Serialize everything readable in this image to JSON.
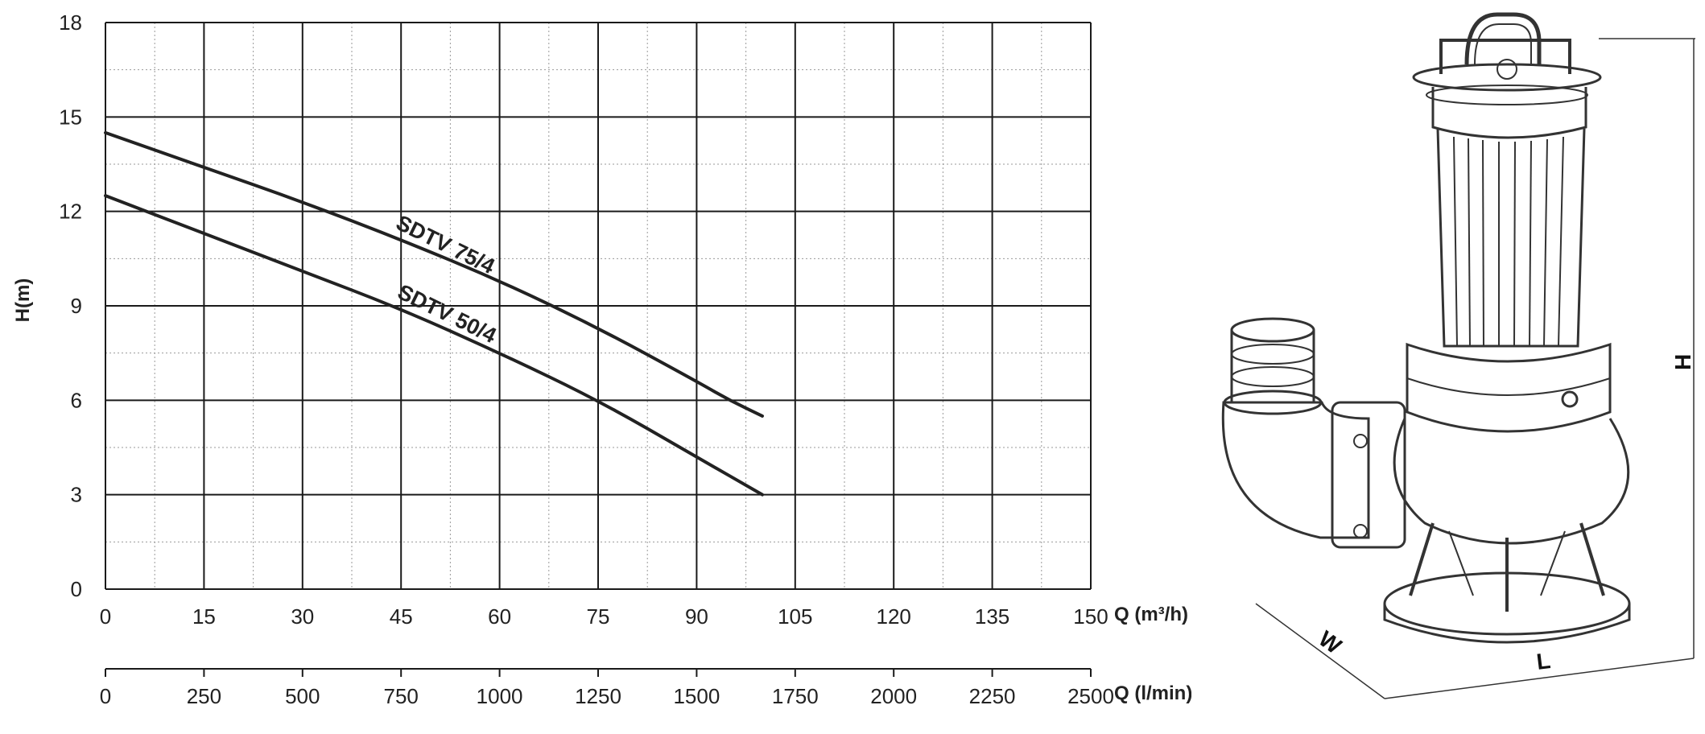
{
  "chart_data": {
    "type": "line",
    "xlabel": "Q (m³/h)",
    "x2label": "Q (l/min)",
    "ylabel": "H(m)",
    "xlim": [
      0,
      150
    ],
    "ylim": [
      0,
      18
    ],
    "grid": true,
    "x_ticks": [
      "0",
      "15",
      "30",
      "45",
      "60",
      "75",
      "90",
      "105",
      "120",
      "135",
      "150"
    ],
    "x_tick_values": [
      0,
      15,
      30,
      45,
      60,
      75,
      90,
      105,
      120,
      135,
      150
    ],
    "x2_ticks": [
      "0",
      "250",
      "500",
      "750",
      "1000",
      "1250",
      "1500",
      "1750",
      "2000",
      "2250",
      "2500"
    ],
    "x2_tick_values": [
      0,
      250,
      500,
      750,
      1000,
      1250,
      1500,
      1750,
      2000,
      2250,
      2500
    ],
    "x2lim": [
      0,
      2500
    ],
    "y_ticks": [
      "0",
      "3",
      "6",
      "9",
      "12",
      "15",
      "18"
    ],
    "y_tick_values": [
      0,
      3,
      6,
      9,
      12,
      15,
      18
    ],
    "series": [
      {
        "name": "SDTV 75/4",
        "x": [
          0,
          15,
          30,
          45,
          60,
          75,
          90,
          95,
          100
        ],
        "values": [
          14.5,
          13.4,
          12.3,
          11.1,
          9.8,
          8.3,
          6.6,
          6.0,
          5.5
        ]
      },
      {
        "name": "SDTV 50/4",
        "x": [
          0,
          15,
          30,
          45,
          60,
          75,
          90,
          100
        ],
        "values": [
          12.5,
          11.3,
          10.1,
          8.9,
          7.5,
          6.0,
          4.2,
          3.0
        ]
      }
    ]
  },
  "dimensions": {
    "height_label": "H",
    "length_label": "L",
    "width_label": "W"
  }
}
